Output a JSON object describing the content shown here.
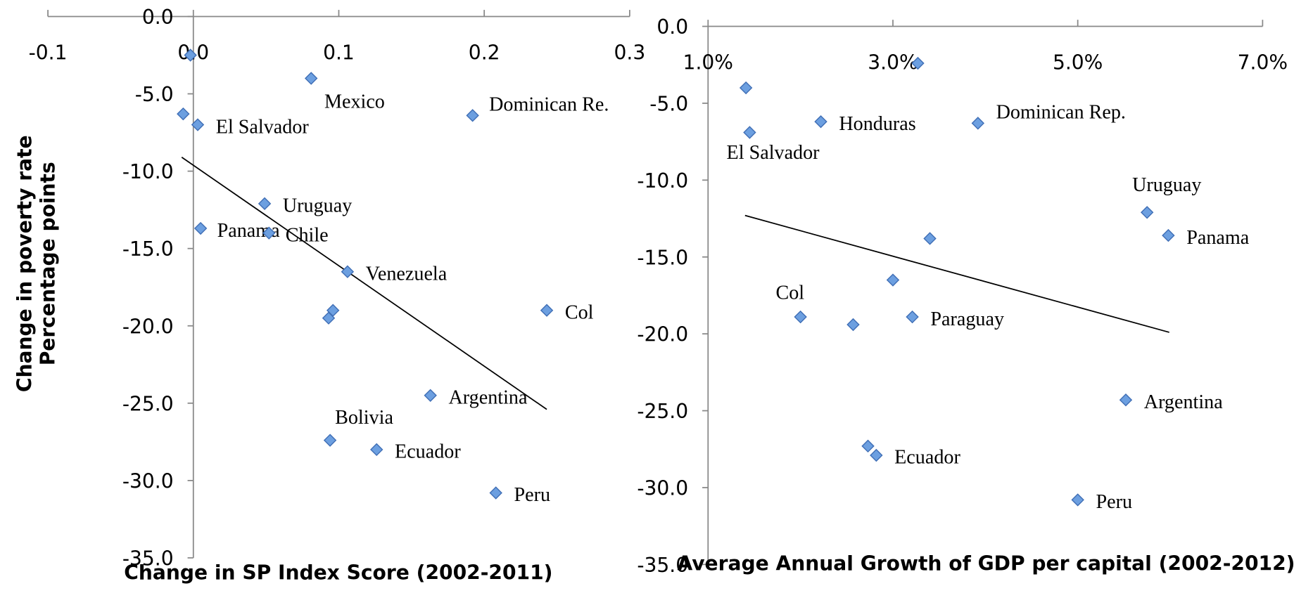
{
  "chart_data": [
    {
      "type": "scatter",
      "x": [
        -0.002,
        0.081,
        0.192,
        -0.007,
        0.003,
        0.049,
        0.005,
        0.052,
        0.106,
        0.096,
        0.093,
        0.243,
        0.163,
        0.094,
        0.126,
        0.208
      ],
      "y": [
        -2.5,
        -4.0,
        -6.4,
        -6.3,
        -7.0,
        -12.1,
        -13.7,
        -14.0,
        -16.5,
        -19.0,
        -19.5,
        -19.0,
        -24.5,
        -27.4,
        -28.0,
        -30.8
      ],
      "labels": [
        null,
        "Mexico",
        "Dominican Re.",
        null,
        "El Salvador",
        "Uruguay",
        "Panama",
        "Chile",
        "Venezuela",
        null,
        null,
        "Col",
        "Argentina",
        "Bolivia",
        "Ecuador",
        "Peru"
      ],
      "color": "#6c9fe0",
      "trendline": {
        "x": [
          -0.008,
          0.243
        ],
        "y": [
          -9.1,
          -25.4
        ],
        "color": "#000000"
      },
      "xlim": [
        -0.1,
        0.3
      ],
      "ylim": [
        0,
        -35
      ],
      "xticks": [
        -0.1,
        {
          "value": 0,
          "label": "0.0"
        },
        0.1,
        0.2,
        0.3
      ],
      "yticks": [
        {
          "value": 0,
          "label": "0.0"
        },
        {
          "value": -5,
          "label": "-5.0"
        },
        {
          "value": -10,
          "label": "-10.0"
        },
        {
          "value": -15,
          "label": "-15.0"
        },
        {
          "value": -20,
          "label": "-20.0"
        },
        {
          "value": -25,
          "label": "-25.0"
        },
        {
          "value": -30,
          "label": "-30.0"
        },
        {
          "value": -35,
          "label": "-35.0"
        }
      ],
      "x_label": "Change in SP Index Score (2002-2011)",
      "y_label": [
        "Change in poverty rate",
        "Percentage points"
      ]
    },
    {
      "type": "scatter",
      "x": [
        3.27,
        1.41,
        1.45,
        2.22,
        3.92,
        5.75,
        5.98,
        3.4,
        3.0,
        2.0,
        2.57,
        3.21,
        5.52,
        2.73,
        2.82,
        5.0
      ],
      "y": [
        -2.4,
        -4.0,
        -6.9,
        -6.2,
        -6.3,
        -12.1,
        -13.6,
        -13.8,
        -16.5,
        -18.9,
        -19.4,
        -18.9,
        -24.3,
        -27.3,
        -27.9,
        -30.8
      ],
      "labels": [
        null,
        null,
        "El Salvador",
        "Honduras",
        "Dominican Rep.",
        "Uruguay",
        "Panama",
        null,
        null,
        "Col",
        null,
        "Paraguay",
        "Argentina",
        null,
        "Ecuador",
        "Peru"
      ],
      "color": "#6c9fe0",
      "trendline": {
        "x": [
          1.4,
          5.99
        ],
        "y": [
          -12.3,
          -19.9
        ],
        "color": "#000000"
      },
      "xlim": [
        1,
        7
      ],
      "ylim": [
        0,
        -35
      ],
      "xticks": [
        {
          "value": 1,
          "label": "1.0%"
        },
        {
          "value": 3,
          "label": "3.0%"
        },
        {
          "value": 5,
          "label": "5.0%"
        },
        {
          "value": 7,
          "label": "7.0%"
        }
      ],
      "yticks": [
        {
          "value": 0,
          "label": "0.0"
        },
        {
          "value": -5,
          "label": "-5.0"
        },
        {
          "value": -10,
          "label": "-10.0"
        },
        {
          "value": -15,
          "label": "-15.0"
        },
        {
          "value": -20,
          "label": "-20.0"
        },
        {
          "value": -25,
          "label": "-25.0"
        },
        {
          "value": -30,
          "label": "-30.0"
        },
        {
          "value": -35,
          "label": "-35.0"
        }
      ],
      "x_label": "Average Annual Growth of GDP per capital (2002-2012)"
    }
  ]
}
